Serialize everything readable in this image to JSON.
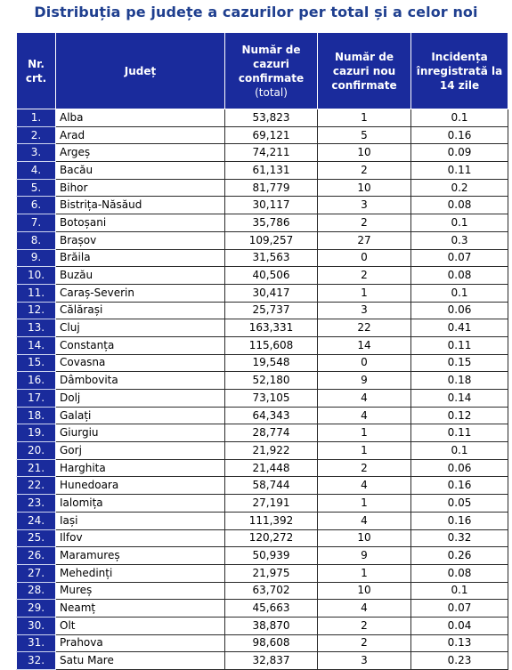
{
  "title": "Distribuția pe județe a cazurilor per total și a celor noi",
  "headers": {
    "nr": [
      "Nr.",
      "crt."
    ],
    "judet": "Județ",
    "total": [
      "Număr de",
      "cazuri",
      "confirmate"
    ],
    "total_sub": "(total)",
    "noi": [
      "Număr de",
      "cazuri nou",
      "confirmate"
    ],
    "incidenta": [
      "Incidența",
      "înregistrată la",
      "14 zile"
    ]
  },
  "rows": [
    {
      "nr": "1.",
      "judet": "Alba",
      "total": "53,823",
      "noi": "1",
      "incidenta": "0.1"
    },
    {
      "nr": "2.",
      "judet": "Arad",
      "total": "69,121",
      "noi": "5",
      "incidenta": "0.16"
    },
    {
      "nr": "3.",
      "judet": "Argeș",
      "total": "74,211",
      "noi": "10",
      "incidenta": "0.09"
    },
    {
      "nr": "4.",
      "judet": "Bacău",
      "total": "61,131",
      "noi": "2",
      "incidenta": "0.11"
    },
    {
      "nr": "5.",
      "judet": "Bihor",
      "total": "81,779",
      "noi": "10",
      "incidenta": "0.2"
    },
    {
      "nr": "6.",
      "judet": "Bistrița-Năsăud",
      "total": "30,117",
      "noi": "3",
      "incidenta": "0.08"
    },
    {
      "nr": "7.",
      "judet": "Botoșani",
      "total": "35,786",
      "noi": "2",
      "incidenta": "0.1"
    },
    {
      "nr": "8.",
      "judet": "Brașov",
      "total": "109,257",
      "noi": "27",
      "incidenta": "0.3"
    },
    {
      "nr": "9.",
      "judet": "Brăila",
      "total": "31,563",
      "noi": "0",
      "incidenta": "0.07"
    },
    {
      "nr": "10.",
      "judet": "Buzău",
      "total": "40,506",
      "noi": "2",
      "incidenta": "0.08"
    },
    {
      "nr": "11.",
      "judet": "Caraș-Severin",
      "total": "30,417",
      "noi": "1",
      "incidenta": "0.1"
    },
    {
      "nr": "12.",
      "judet": "Călărași",
      "total": "25,737",
      "noi": "3",
      "incidenta": "0.06"
    },
    {
      "nr": "13.",
      "judet": "Cluj",
      "total": "163,331",
      "noi": "22",
      "incidenta": "0.41"
    },
    {
      "nr": "14.",
      "judet": "Constanța",
      "total": "115,608",
      "noi": "14",
      "incidenta": "0.11"
    },
    {
      "nr": "15.",
      "judet": "Covasna",
      "total": "19,548",
      "noi": "0",
      "incidenta": "0.15"
    },
    {
      "nr": "16.",
      "judet": "Dâmbovita",
      "total": "52,180",
      "noi": "9",
      "incidenta": "0.18"
    },
    {
      "nr": "17.",
      "judet": "Dolj",
      "total": "73,105",
      "noi": "4",
      "incidenta": "0.14"
    },
    {
      "nr": "18.",
      "judet": "Galați",
      "total": "64,343",
      "noi": "4",
      "incidenta": "0.12"
    },
    {
      "nr": "19.",
      "judet": "Giurgiu",
      "total": "28,774",
      "noi": "1",
      "incidenta": "0.11"
    },
    {
      "nr": "20.",
      "judet": "Gorj",
      "total": "21,922",
      "noi": "1",
      "incidenta": "0.1"
    },
    {
      "nr": "21.",
      "judet": "Harghita",
      "total": "21,448",
      "noi": "2",
      "incidenta": "0.06"
    },
    {
      "nr": "22.",
      "judet": "Hunedoara",
      "total": "58,744",
      "noi": "4",
      "incidenta": "0.16"
    },
    {
      "nr": "23.",
      "judet": "Ialomița",
      "total": "27,191",
      "noi": "1",
      "incidenta": "0.05"
    },
    {
      "nr": "24.",
      "judet": "Iași",
      "total": "111,392",
      "noi": "4",
      "incidenta": "0.16"
    },
    {
      "nr": "25.",
      "judet": "Ilfov",
      "total": "120,272",
      "noi": "10",
      "incidenta": "0.32"
    },
    {
      "nr": "26.",
      "judet": "Maramureș",
      "total": "50,939",
      "noi": "9",
      "incidenta": "0.26"
    },
    {
      "nr": "27.",
      "judet": "Mehedinți",
      "total": "21,975",
      "noi": "1",
      "incidenta": "0.08"
    },
    {
      "nr": "28.",
      "judet": "Mureș",
      "total": "63,702",
      "noi": "10",
      "incidenta": "0.1"
    },
    {
      "nr": "29.",
      "judet": "Neamț",
      "total": "45,663",
      "noi": "4",
      "incidenta": "0.07"
    },
    {
      "nr": "30.",
      "judet": "Olt",
      "total": "38,870",
      "noi": "2",
      "incidenta": "0.04"
    },
    {
      "nr": "31.",
      "judet": "Prahova",
      "total": "98,608",
      "noi": "2",
      "incidenta": "0.13"
    },
    {
      "nr": "32.",
      "judet": "Satu Mare",
      "total": "32,837",
      "noi": "3",
      "incidenta": "0.23"
    }
  ]
}
